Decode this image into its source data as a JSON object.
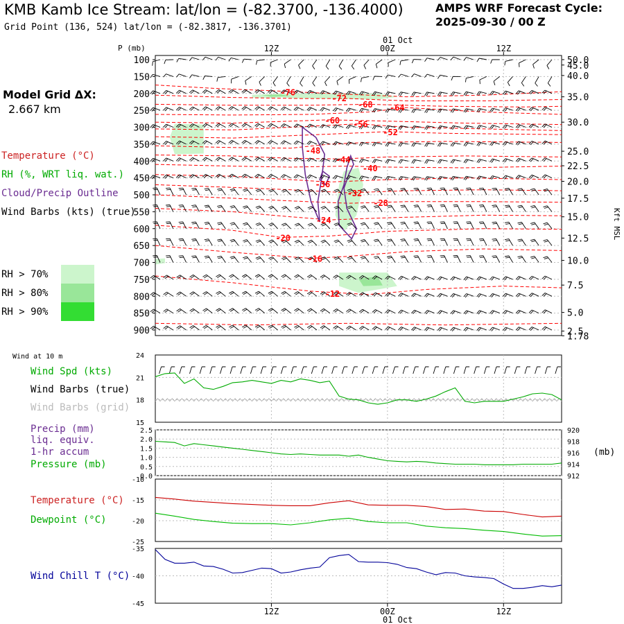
{
  "header": {
    "title": "KMB Kamb Ice Stream:  lat/lon = (-82.3700, -136.4000)",
    "subtitle": "Grid Point (136, 524) lat/lon = (-82.3817, -136.3701)",
    "cycle_line1": "AMPS WRF Forecast Cycle:",
    "cycle_line2": "2025-09-30 / 00  Z"
  },
  "model_grid": {
    "line1": "Model Grid ΔX:",
    "line2": "2.667 km"
  },
  "colors": {
    "temperature": "#cc0000",
    "temp_contour": "#ff0000",
    "rh": "#00aa00",
    "cloud": "#6a2c91",
    "wind": "#000000",
    "wind_grid": "#aaaaaa",
    "precip": "#6a2c91",
    "pressure": "#00aa00",
    "dewpoint": "#00bb00",
    "windchill": "#000099",
    "rh70": "#ccf5cc",
    "rh80": "#99e699",
    "rh90": "#33dd33"
  },
  "legend_upper": {
    "temperature": "Temperature (°C)",
    "rh": "RH (%, WRT liq. wat.)",
    "cloud": "Cloud/Precip Outline",
    "wind": "Wind Barbs (kts) (true)",
    "rh70": "RH > 70%",
    "rh80": "RH > 80%",
    "rh90": "RH > 90%"
  },
  "legend_panels": {
    "wind10m": "Wind at 10 m",
    "wind_spd": "Wind Spd (kts)",
    "wind_barbs_true": "Wind Barbs (true)",
    "wind_barbs_grid": "Wind Barbs (grid)",
    "precip1": "Precip (mm)",
    "precip2": "liq. equiv.",
    "precip3": "1-hr accum",
    "pressure": "Pressure (mb)",
    "temperature": "Temperature (°C)",
    "dewpoint": "Dewpoint (°C)",
    "windchill": "Wind Chill T (°C)"
  },
  "axes": {
    "p_label": "P (mb)",
    "kft_label": "Kft MSL",
    "mb_label": "(mb)",
    "time_top": [
      "12Z",
      "00Z",
      "12Z"
    ],
    "date_label": "01 Oct",
    "time_bottom": [
      "12Z",
      "00Z",
      "12Z"
    ]
  },
  "chart_data": [
    {
      "type": "heatmap",
      "description_key": "time-height cross section",
      "x": {
        "start_hour": 0,
        "end_hour": 42,
        "ticks_hours": [
          12,
          24,
          36
        ],
        "tick_labels": [
          "12Z",
          "00Z",
          "12Z"
        ]
      },
      "pressure_levels": [
        100,
        150,
        200,
        250,
        300,
        350,
        400,
        450,
        500,
        550,
        600,
        650,
        700,
        750,
        800,
        850,
        900
      ],
      "ylim_mb": [
        100,
        917
      ],
      "height_kft_ticks": [
        "50.0",
        "45.0",
        "40.0",
        "35.0",
        "30.0",
        "25.0",
        "22.5",
        "20.0",
        "17.5",
        "15.0",
        "12.5",
        "10.0",
        "7.5",
        "5.0",
        "2.5",
        "1.78"
      ],
      "height_kft_tick_mb": [
        100,
        116,
        147,
        210,
        285,
        371,
        414,
        460,
        510,
        565,
        628,
        694,
        767,
        848,
        903,
        917
      ],
      "temp_contour_labels": [
        {
          "label": "-76",
          "hour": 13.7,
          "mb": 195
        },
        {
          "label": "-72",
          "hour": 19.0,
          "mb": 213
        },
        {
          "label": "-68",
          "hour": 21.7,
          "mb": 231
        },
        {
          "label": "-64",
          "hour": 25.0,
          "mb": 241
        },
        {
          "label": "-60",
          "hour": 18.3,
          "mb": 278
        },
        {
          "label": "-56",
          "hour": 21.2,
          "mb": 290
        },
        {
          "label": "-52",
          "hour": 24.3,
          "mb": 313
        },
        {
          "label": "-48",
          "hour": 16.3,
          "mb": 368
        },
        {
          "label": "-44",
          "hour": 19.4,
          "mb": 394
        },
        {
          "label": "-40",
          "hour": 22.2,
          "mb": 420
        },
        {
          "label": "-36",
          "hour": 17.3,
          "mb": 467
        },
        {
          "label": "-32",
          "hour": 20.6,
          "mb": 494
        },
        {
          "label": "-28",
          "hour": 23.3,
          "mb": 523
        },
        {
          "label": "-24",
          "hour": 17.4,
          "mb": 574
        },
        {
          "label": "-20",
          "hour": 13.2,
          "mb": 626
        },
        {
          "label": "-16",
          "hour": 16.5,
          "mb": 688
        },
        {
          "label": "-12",
          "hour": 18.3,
          "mb": 791
        }
      ]
    },
    {
      "type": "line",
      "panel": "wind10m",
      "ylim": [
        15,
        24
      ],
      "yticks": [
        15,
        18,
        21,
        24
      ],
      "series": [
        {
          "name": "Wind Spd (kts)",
          "x_hours": [
            0,
            1,
            2,
            3,
            4,
            5,
            6,
            7,
            8,
            9,
            10,
            11,
            12,
            13,
            14,
            15,
            16,
            17,
            18,
            19,
            20,
            21,
            22,
            23,
            24,
            25,
            26,
            27,
            28,
            29,
            30,
            31,
            32,
            33,
            34,
            35,
            36,
            37,
            38,
            39,
            40,
            41,
            42
          ],
          "values": [
            21.1,
            21.5,
            21.6,
            20.2,
            20.8,
            19.6,
            19.4,
            19.8,
            20.3,
            20.4,
            20.6,
            20.4,
            20.2,
            20.6,
            20.4,
            20.8,
            20.6,
            20.3,
            20.5,
            18.5,
            18.1,
            18.0,
            17.6,
            17.4,
            17.6,
            18.0,
            18.0,
            17.8,
            18.1,
            18.5,
            19.1,
            19.6,
            17.8,
            17.6,
            17.8,
            17.8,
            17.8,
            18.1,
            18.4,
            18.8,
            18.9,
            18.7,
            18.0
          ]
        }
      ]
    },
    {
      "type": "line",
      "panel": "precip_pressure",
      "ylim_left": [
        0.0,
        2.5
      ],
      "yticks_left": [
        "0.0",
        "0.5",
        "1.0",
        "1.5",
        "2.0",
        "2.5"
      ],
      "ylim_right": [
        912,
        920
      ],
      "yticks_right": [
        "912",
        "914",
        "916",
        "918",
        "920"
      ],
      "series": [
        {
          "name": "Pressure (mb)",
          "x_hours": [
            0,
            1,
            2,
            3,
            4,
            5,
            6,
            7,
            8,
            9,
            10,
            11,
            12,
            13,
            14,
            15,
            16,
            17,
            18,
            19,
            20,
            21,
            22,
            23,
            24,
            25,
            26,
            27,
            28,
            29,
            30,
            31,
            32,
            33,
            34,
            35,
            36,
            37,
            38,
            39,
            40,
            41,
            42
          ],
          "values": [
            918.0,
            917.9,
            917.8,
            917.2,
            917.6,
            917.4,
            917.2,
            917.0,
            916.8,
            916.6,
            916.4,
            916.2,
            916.0,
            915.8,
            915.7,
            915.8,
            915.7,
            915.6,
            915.6,
            915.6,
            915.4,
            915.6,
            915.2,
            914.9,
            914.6,
            914.5,
            914.4,
            914.5,
            914.4,
            914.2,
            914.1,
            914.0,
            914.0,
            914.0,
            913.9,
            913.9,
            913.9,
            913.9,
            914.0,
            914.0,
            914.0,
            914.0,
            914.2
          ]
        }
      ]
    },
    {
      "type": "line",
      "panel": "temperature_dewpoint",
      "ylim": [
        -25,
        -10
      ],
      "yticks": [
        -25,
        -20,
        -15,
        -10
      ],
      "series": [
        {
          "name": "Temperature (°C)",
          "x_hours": [
            0,
            2,
            4,
            6,
            8,
            10,
            12,
            14,
            16,
            18,
            20,
            22,
            24,
            26,
            28,
            30,
            32,
            34,
            36,
            38,
            40,
            42
          ],
          "values": [
            -14.4,
            -14.8,
            -15.3,
            -15.6,
            -15.9,
            -16.1,
            -16.3,
            -16.4,
            -16.4,
            -15.7,
            -15.2,
            -16.2,
            -16.3,
            -16.3,
            -16.6,
            -17.3,
            -17.2,
            -17.7,
            -17.8,
            -18.5,
            -19.1,
            -18.9
          ]
        },
        {
          "name": "Dewpoint (°C)",
          "x_hours": [
            0,
            2,
            4,
            6,
            8,
            10,
            12,
            14,
            16,
            18,
            20,
            22,
            24,
            26,
            28,
            30,
            32,
            34,
            36,
            38,
            40,
            42
          ],
          "values": [
            -18.2,
            -18.9,
            -19.7,
            -20.2,
            -20.6,
            -20.7,
            -20.7,
            -21.0,
            -20.5,
            -19.8,
            -19.4,
            -20.2,
            -20.5,
            -20.5,
            -21.3,
            -21.7,
            -21.9,
            -22.3,
            -22.6,
            -23.2,
            -23.7,
            -23.6
          ]
        }
      ]
    },
    {
      "type": "line",
      "panel": "windchill",
      "ylim": [
        -45,
        -35
      ],
      "yticks": [
        -45,
        -40,
        -35
      ],
      "series": [
        {
          "name": "Wind Chill T (°C)",
          "x_hours": [
            0,
            1,
            2,
            3,
            4,
            5,
            6,
            7,
            8,
            9,
            10,
            11,
            12,
            13,
            14,
            15,
            16,
            17,
            18,
            19,
            20,
            21,
            22,
            23,
            24,
            25,
            26,
            27,
            28,
            29,
            30,
            31,
            32,
            33,
            34,
            35,
            36,
            37,
            38,
            39,
            40,
            41,
            42
          ],
          "values": [
            -35.2,
            -37.0,
            -37.7,
            -37.7,
            -37.5,
            -38.2,
            -38.3,
            -38.8,
            -39.5,
            -39.4,
            -39.0,
            -38.6,
            -38.7,
            -39.5,
            -39.3,
            -38.9,
            -38.6,
            -38.4,
            -36.7,
            -36.3,
            -36.1,
            -37.4,
            -37.5,
            -37.5,
            -37.6,
            -37.9,
            -38.5,
            -38.7,
            -39.3,
            -39.8,
            -39.4,
            -39.5,
            -40.0,
            -40.2,
            -40.3,
            -40.5,
            -41.5,
            -42.3,
            -42.3,
            -42.1,
            -41.8,
            -42.0,
            -41.7
          ]
        }
      ]
    }
  ]
}
